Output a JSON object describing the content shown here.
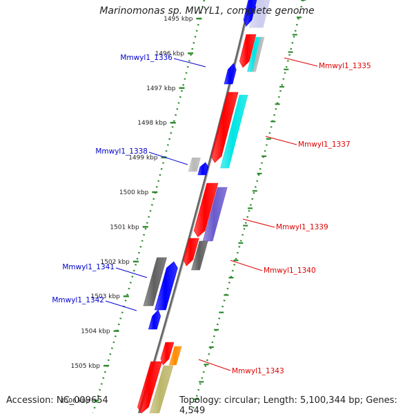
{
  "title": "Marinomonas sp. MWYL1, complete genome",
  "footer": {
    "accession": "Accession: NC_009654",
    "summary": "Topology: circular; Length: 5,100,344 bp; Genes: 4,549"
  },
  "ticks": [
    "1495 kbp",
    "1496 kbp",
    "1497 kbp",
    "1498 kbp",
    "1499 kbp",
    "1500 kbp",
    "1501 kbp",
    "1502 kbp",
    "1503 kbp",
    "1504 kbp",
    "1505 kbp",
    "1506 kbp"
  ],
  "labels_left": [
    "Mmwyl1_1336",
    "Mmwyl1_1338",
    "Mmwyl1_1341",
    "Mmwyl1_1342"
  ],
  "labels_right": [
    "Mmwyl1_1335",
    "Mmwyl1_1337",
    "Mmwyl1_1339",
    "Mmwyl1_1340",
    "Mmwyl1_1343"
  ],
  "colors": {
    "left_label": "#0000cc",
    "right_label": "#dd0000",
    "axis": "#808080",
    "ruler": "#2e8b2e",
    "red": "#ff0000",
    "cyan": "#00e5e5",
    "blue": "#0000ff",
    "grey": "#606060",
    "lightgrey": "#b8b8b8",
    "purple": "#6a5acd",
    "orange": "#ff8c00",
    "khaki": "#bdb76b",
    "lavender": "#ccccee"
  }
}
